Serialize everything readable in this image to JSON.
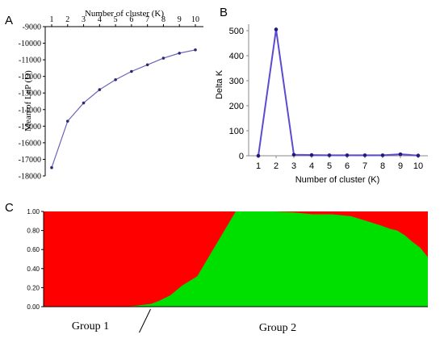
{
  "panels": {
    "a": {
      "letter": "A"
    },
    "b": {
      "letter": "B"
    },
    "c": {
      "letter": "C"
    }
  },
  "colors": {
    "line": "#6a64b8",
    "marker": "#2c2a6e",
    "deltaLine": "#5b4bd1",
    "deltaMarker": "#1f1b7a",
    "red": "#ff0000",
    "green": "#00e000"
  },
  "chart_data": [
    {
      "type": "line",
      "panel": "A",
      "xlabel": "Number of cluster (K)",
      "ylabel": "Mean of LnP (D)",
      "x": [
        1,
        2,
        3,
        4,
        5,
        6,
        7,
        8,
        9,
        10
      ],
      "series": [
        {
          "values": [
            -17500,
            -14700,
            -13600,
            -12800,
            -12200,
            -11700,
            -11300,
            -10900,
            -10600,
            -10400
          ]
        }
      ],
      "ylim": [
        -18000,
        -9000
      ],
      "yticks": [
        -9000,
        -10000,
        -11000,
        -12000,
        -13000,
        -14000,
        -15000,
        -16000,
        -17000,
        -18000
      ],
      "xaxis_position": "top",
      "grid": false
    },
    {
      "type": "line",
      "panel": "B",
      "xlabel": "Number of cluster (K)",
      "ylabel": "Delta K",
      "x": [
        1,
        2,
        3,
        4,
        5,
        6,
        7,
        8,
        9,
        10
      ],
      "series": [
        {
          "values": [
            0,
            505,
            4,
            3,
            2,
            2,
            2,
            2,
            6,
            1
          ]
        }
      ],
      "ylim": [
        0,
        500
      ],
      "yticks": [
        0,
        100,
        200,
        300,
        400,
        500
      ],
      "grid": false
    },
    {
      "type": "area",
      "panel": "C",
      "ylim": [
        0,
        1
      ],
      "yticks": [
        "0.00",
        "0.20",
        "0.40",
        "0.60",
        "0.80",
        "1.00"
      ],
      "stacked": true,
      "boundary_x": [
        0,
        0.05,
        0.1,
        0.15,
        0.2,
        0.24,
        0.26,
        0.28,
        0.3,
        0.33,
        0.36,
        0.4,
        0.5,
        0.6,
        0.65,
        0.7,
        0.75,
        0.8,
        0.84,
        0.88,
        0.9,
        0.92,
        0.94,
        0.96,
        0.98,
        1.0
      ],
      "boundary_green_top": [
        0,
        0,
        0,
        0,
        0,
        0.01,
        0.02,
        0.03,
        0.06,
        0.12,
        0.22,
        0.32,
        1.0,
        1.0,
        0.99,
        0.97,
        0.97,
        0.95,
        0.9,
        0.85,
        0.82,
        0.8,
        0.75,
        0.68,
        0.62,
        0.52
      ],
      "group_split_fraction": 0.27,
      "groups": [
        "Group 1",
        "Group 2"
      ]
    }
  ]
}
